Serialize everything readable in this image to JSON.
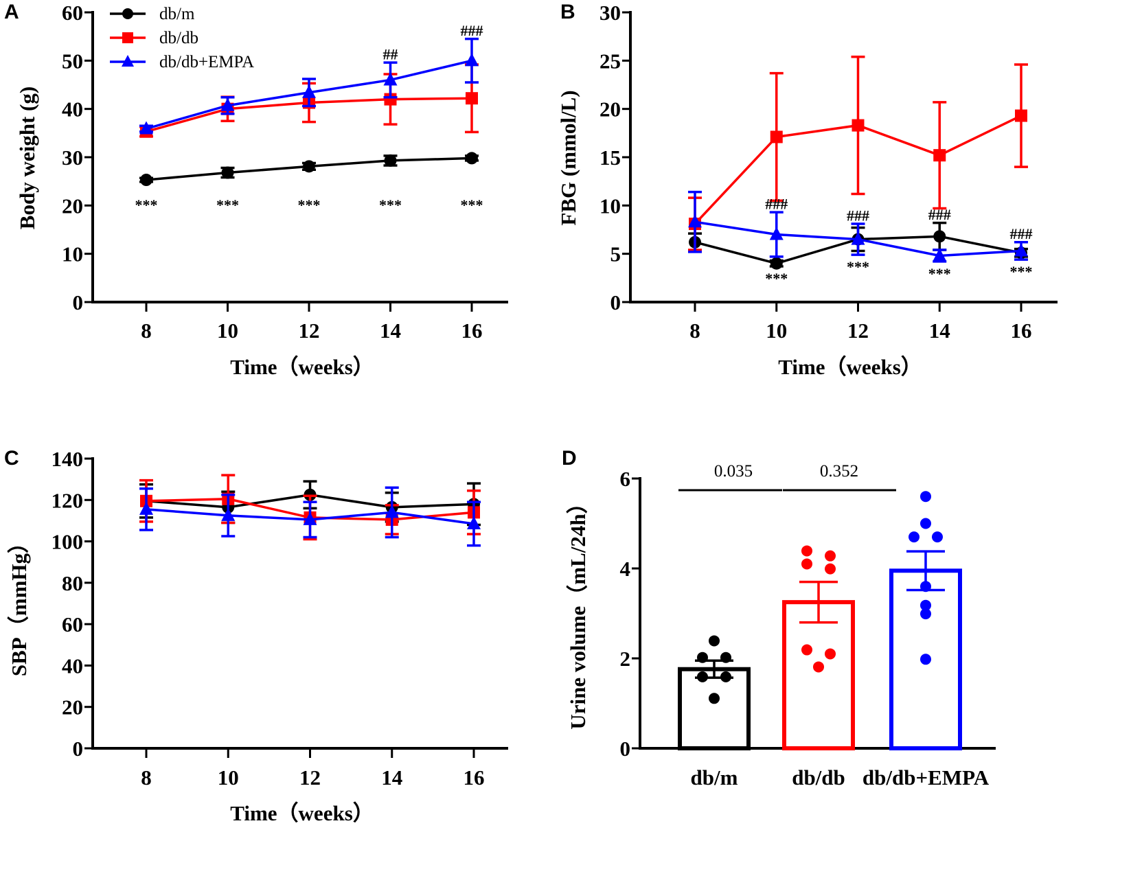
{
  "colors": {
    "db_m": "#000000",
    "db_db": "#ff0000",
    "db_db_EMPA": "#0000ff"
  },
  "legend": [
    {
      "label": "db/m",
      "color": "#000000",
      "marker": "circle"
    },
    {
      "label": "db/db",
      "color": "#ff0000",
      "marker": "square"
    },
    {
      "label": "db/db+EMPA",
      "color": "#0000ff",
      "marker": "triangle"
    }
  ],
  "chart_data": [
    {
      "panel": "A",
      "type": "line",
      "xlabel": "Time（weeks）",
      "ylabel": "Body weight (g)",
      "x": [
        8,
        10,
        12,
        14,
        16
      ],
      "ylim": [
        0,
        60
      ],
      "yticks": [
        0,
        10,
        20,
        30,
        40,
        50,
        60
      ],
      "series": [
        {
          "name": "db/m",
          "marker": "circle",
          "color": "#000000",
          "values": [
            25.3,
            26.8,
            28.1,
            29.3,
            29.8
          ],
          "error": [
            0.4,
            1.0,
            0.7,
            1.0,
            0.5
          ]
        },
        {
          "name": "db/db",
          "marker": "square",
          "color": "#ff0000",
          "values": [
            35.3,
            40.0,
            41.3,
            42.0,
            42.2
          ],
          "error": [
            1.0,
            2.5,
            4.0,
            5.2,
            7.0
          ]
        },
        {
          "name": "db/db+EMPA",
          "marker": "triangle",
          "color": "#0000ff",
          "values": [
            35.9,
            40.7,
            43.4,
            46.0,
            50.0
          ],
          "error": [
            0.6,
            1.7,
            2.8,
            3.6,
            4.5
          ]
        }
      ],
      "annotations": [
        {
          "x": 8,
          "label": "***",
          "place": "below"
        },
        {
          "x": 10,
          "label": "***",
          "place": "below"
        },
        {
          "x": 12,
          "label": "***",
          "place": "below"
        },
        {
          "x": 14,
          "label": "***",
          "place": "below"
        },
        {
          "x": 16,
          "label": "***",
          "place": "below"
        },
        {
          "x": 14,
          "label": "##",
          "place": "above"
        },
        {
          "x": 16,
          "label": "###",
          "place": "above"
        }
      ]
    },
    {
      "panel": "B",
      "type": "line",
      "xlabel": "Time（weeks）",
      "ylabel": "FBG (mmol/L)",
      "x": [
        8,
        10,
        12,
        14,
        16
      ],
      "ylim": [
        0,
        30
      ],
      "yticks": [
        0,
        5,
        10,
        15,
        20,
        25,
        30
      ],
      "series": [
        {
          "name": "db/m",
          "marker": "circle",
          "color": "#000000",
          "values": [
            6.2,
            4.0,
            6.5,
            6.8,
            5.1
          ],
          "error": [
            0.9,
            0.3,
            1.2,
            1.4,
            0.4
          ]
        },
        {
          "name": "db/db",
          "marker": "square",
          "color": "#ff0000",
          "values": [
            8.1,
            17.1,
            18.3,
            15.2,
            19.3
          ],
          "error": [
            2.7,
            6.6,
            7.1,
            5.5,
            5.3
          ]
        },
        {
          "name": "db/db+EMPA",
          "marker": "triangle",
          "color": "#0000ff",
          "values": [
            8.3,
            7.0,
            6.5,
            4.8,
            5.3
          ],
          "error": [
            3.1,
            2.3,
            1.6,
            0.6,
            0.9
          ]
        }
      ],
      "annotations": [
        {
          "x": 10,
          "label": "###",
          "place": "above"
        },
        {
          "x": 12,
          "label": "###",
          "place": "above"
        },
        {
          "x": 14,
          "label": "###",
          "place": "above"
        },
        {
          "x": 16,
          "label": "###",
          "place": "above"
        },
        {
          "x": 10,
          "label": "***",
          "place": "below"
        },
        {
          "x": 12,
          "label": "***",
          "place": "below"
        },
        {
          "x": 14,
          "label": "***",
          "place": "below"
        },
        {
          "x": 16,
          "label": "***",
          "place": "below"
        }
      ]
    },
    {
      "panel": "C",
      "type": "line",
      "xlabel": "Time（weeks）",
      "ylabel": "SBP（mmHg）",
      "x": [
        8,
        10,
        12,
        14,
        16
      ],
      "ylim": [
        0,
        140
      ],
      "yticks": [
        0,
        20,
        40,
        60,
        80,
        100,
        120,
        140
      ],
      "series": [
        {
          "name": "db/m",
          "marker": "circle",
          "color": "#000000",
          "values": [
            119.5,
            116.5,
            122.5,
            116.5,
            118.0
          ],
          "error": [
            8.0,
            7.5,
            6.5,
            7.0,
            10.0
          ]
        },
        {
          "name": "db/db",
          "marker": "square",
          "color": "#ff0000",
          "values": [
            119.5,
            120.5,
            111.5,
            110.5,
            114.0
          ],
          "error": [
            10.0,
            11.5,
            10.5,
            7.0,
            10.5
          ]
        },
        {
          "name": "db/db+EMPA",
          "marker": "triangle",
          "color": "#0000ff",
          "values": [
            115.5,
            112.5,
            110.5,
            114.0,
            108.5
          ],
          "error": [
            10.0,
            10.0,
            8.5,
            12.0,
            10.5
          ]
        }
      ],
      "annotations": []
    },
    {
      "panel": "D",
      "type": "bar",
      "xlabel": "",
      "ylabel": "Urine volume（mL/24h）",
      "categories": [
        "db/m",
        "db/db",
        "db/db+EMPA"
      ],
      "ylim": [
        0,
        6
      ],
      "yticks": [
        0,
        2,
        4,
        6
      ],
      "values": [
        1.76,
        3.25,
        3.95
      ],
      "error": [
        0.19,
        0.45,
        0.43
      ],
      "colors": [
        "#000000",
        "#ff0000",
        "#0000ff"
      ],
      "points": [
        [
          2.39,
          2.02,
          2.02,
          1.59,
          1.59,
          1.11
        ],
        [
          4.39,
          4.28,
          4.1,
          3.99,
          2.19,
          2.1,
          1.81
        ],
        [
          5.6,
          5.0,
          4.7,
          4.7,
          3.6,
          3.18,
          2.99,
          1.98
        ]
      ],
      "comparisons": [
        {
          "from": "db/m",
          "to": "db/db",
          "label": "0.035"
        },
        {
          "from": "db/db",
          "to": "db/db+EMPA",
          "label": "0.352"
        }
      ]
    }
  ]
}
